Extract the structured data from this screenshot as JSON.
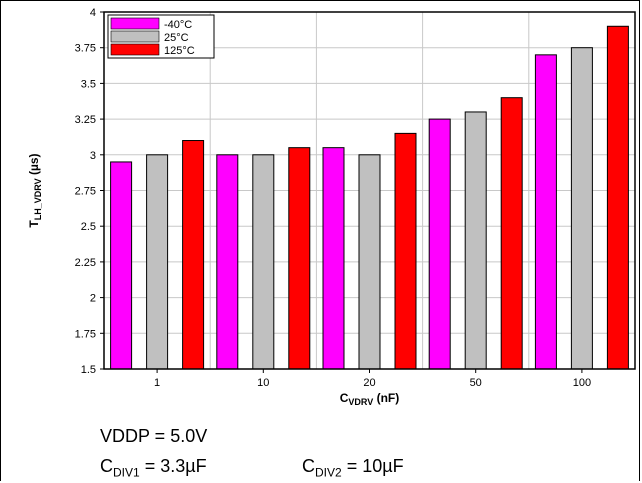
{
  "chart_data": {
    "type": "bar",
    "categories": [
      "1",
      "10",
      "20",
      "50",
      "100"
    ],
    "series": [
      {
        "name": "-40°C",
        "color": "#ff00ff",
        "values": [
          2.95,
          3.0,
          3.05,
          3.25,
          3.7
        ]
      },
      {
        "name": "25°C",
        "color": "#c0c0c0",
        "values": [
          3.0,
          3.0,
          3.0,
          3.3,
          3.75
        ]
      },
      {
        "name": "125°C",
        "color": "#ff0000",
        "values": [
          3.1,
          3.05,
          3.15,
          3.4,
          3.9
        ]
      }
    ],
    "xlabel": {
      "main": "C",
      "sub": "VDRV",
      "suffix": " (nF)"
    },
    "ylabel": {
      "main": "T",
      "sub": "LH_VDRV",
      "suffix": " (µs)"
    },
    "ylim": [
      1.5,
      4
    ],
    "yticks": [
      "1.5",
      "1.75",
      "2",
      "2.25",
      "2.5",
      "2.75",
      "3",
      "3.25",
      "3.5",
      "3.75",
      "4"
    ],
    "grid": true,
    "legend_position": "top-left"
  },
  "notes": {
    "line1": "VDDP = 5.0V",
    "cdiv1_main": "C",
    "cdiv1_sub": "DIV1",
    "cdiv1_value": " = 3.3µF",
    "cdiv2_main": "C",
    "cdiv2_sub": "DIV2",
    "cdiv2_value": " = 10µF"
  }
}
